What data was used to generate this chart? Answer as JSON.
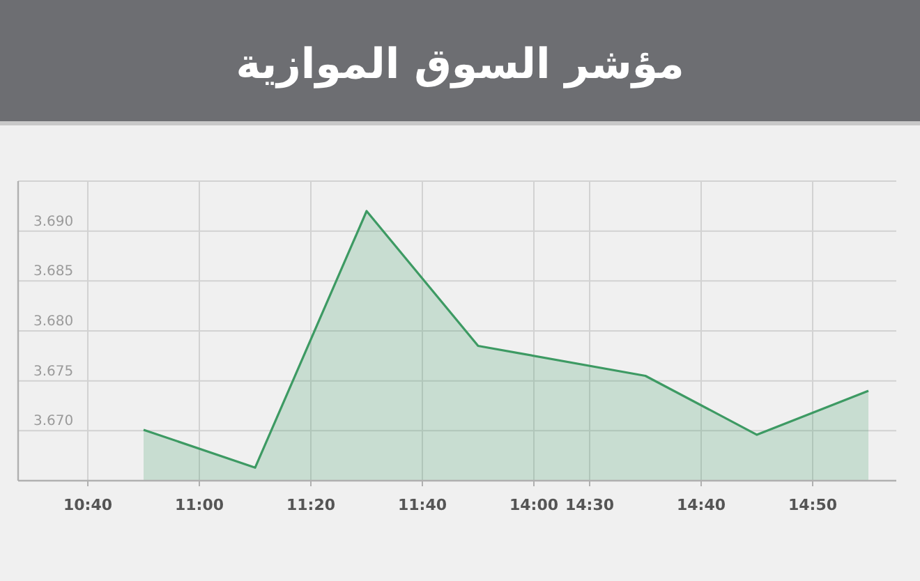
{
  "chart_data": {
    "type": "area",
    "title": "مؤشر السوق الموازية",
    "categories": [
      "10:40",
      null,
      "11:00",
      null,
      "11:20",
      null,
      "11:40",
      null,
      "14:00",
      "14:30",
      null,
      "14:40",
      null,
      "14:50",
      null
    ],
    "values": [
      null,
      3.6701,
      null,
      3.6663,
      null,
      3.692,
      null,
      3.6785,
      null,
      null,
      3.6755,
      null,
      3.6696,
      null,
      3.674
    ],
    "color": "#3d9a63",
    "ylim": [
      3.665,
      3.695
    ],
    "yticks": [
      {
        "value": 3.67,
        "label": "3.670"
      },
      {
        "value": 3.675,
        "label": "3.675"
      },
      {
        "value": 3.68,
        "label": "3.680"
      },
      {
        "value": 3.685,
        "label": "3.685"
      },
      {
        "value": 3.69,
        "label": "3.690"
      },
      {
        "value": 3.695,
        "label": null
      }
    ],
    "grid": true
  }
}
